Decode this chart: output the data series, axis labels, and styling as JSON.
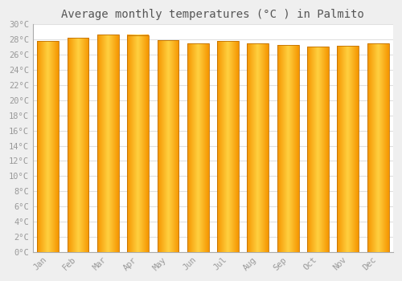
{
  "title": "Average monthly temperatures (°C ) in Palmito",
  "months": [
    "Jan",
    "Feb",
    "Mar",
    "Apr",
    "May",
    "Jun",
    "Jul",
    "Aug",
    "Sep",
    "Oct",
    "Nov",
    "Dec"
  ],
  "temperatures": [
    27.8,
    28.2,
    28.7,
    28.6,
    27.9,
    27.5,
    27.8,
    27.5,
    27.3,
    27.1,
    27.2,
    27.5
  ],
  "ylim": [
    0,
    30
  ],
  "ytick_step": 2,
  "bar_color_center": "#FFD040",
  "bar_color_edge": "#F59500",
  "plot_bg_color": "#FFFFFF",
  "fig_bg_color": "#EFEFEF",
  "grid_color": "#E0E0E0",
  "title_fontsize": 10,
  "tick_fontsize": 7.5,
  "font_family": "monospace",
  "title_color": "#555555",
  "tick_color": "#999999"
}
